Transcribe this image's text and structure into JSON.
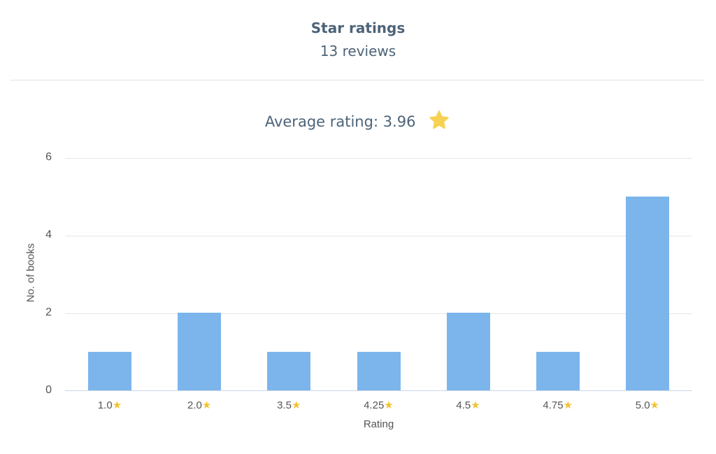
{
  "header": {
    "title": "Star ratings",
    "subtitle": "13 reviews"
  },
  "summary": {
    "average_label": "Average rating: 3.96",
    "icon": "star-icon",
    "star_color": "#f7d154"
  },
  "chart_data": {
    "type": "bar",
    "title": "Star ratings",
    "subtitle": "13 reviews",
    "annotation": "Average rating: 3.96",
    "categories": [
      "1.0⭐",
      "2.0⭐",
      "3.5⭐",
      "4.25⭐",
      "4.5⭐",
      "4.75⭐",
      "5.0⭐"
    ],
    "category_labels": [
      "1.0",
      "2.0",
      "3.5",
      "4.25",
      "4.5",
      "4.75",
      "5.0"
    ],
    "values": [
      1,
      2,
      1,
      1,
      2,
      1,
      5
    ],
    "xlabel": "Rating",
    "ylabel": "No. of books",
    "ylim": [
      0,
      6
    ],
    "yticks": [
      "0",
      "2",
      "4",
      "6"
    ],
    "grid": true,
    "legend": "none",
    "bar_color": "#7cb5ec"
  }
}
